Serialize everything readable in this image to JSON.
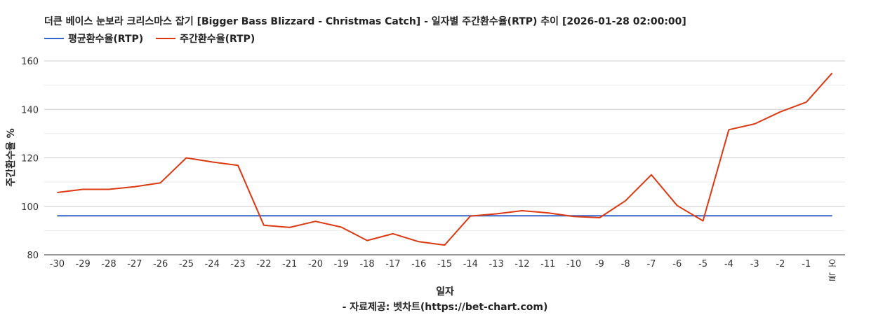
{
  "chart_data": {
    "type": "line",
    "title": "더큰 베이스 눈보라 크리스마스 잡기 [Bigger Bass Blizzard - Christmas Catch] - 일자별 주간환수율(RTP) 추이 [2026-01-28 02:00:00]",
    "xlabel": "일자",
    "ylabel": "주간환수율 %",
    "categories": [
      "-30",
      "-29",
      "-28",
      "-27",
      "-26",
      "-25",
      "-24",
      "-23",
      "-22",
      "-21",
      "-20",
      "-19",
      "-18",
      "-17",
      "-16",
      "-15",
      "-14",
      "-13",
      "-12",
      "-11",
      "-10",
      "-9",
      "-8",
      "-7",
      "-6",
      "-5",
      "-4",
      "-3",
      "-2",
      "-1",
      "오늘"
    ],
    "ylim": [
      80,
      160
    ],
    "yticks": [
      80,
      100,
      120,
      140,
      160
    ],
    "grid": true,
    "legend_position": "top-left",
    "series": [
      {
        "name": "평균환수율(RTP)",
        "color": "#3366cc",
        "values": [
          96.1,
          96.1,
          96.1,
          96.1,
          96.1,
          96.1,
          96.1,
          96.1,
          96.1,
          96.1,
          96.1,
          96.1,
          96.1,
          96.1,
          96.1,
          96.1,
          96.1,
          96.1,
          96.1,
          96.1,
          96.1,
          96.1,
          96.1,
          96.1,
          96.1,
          96.1,
          96.1,
          96.1,
          96.1,
          96.1,
          96.1
        ]
      },
      {
        "name": "주간환수율(RTP)",
        "color": "#dc3912",
        "values": [
          105.7,
          107,
          107,
          108.1,
          109.7,
          120,
          118.3,
          116.9,
          92.2,
          91.3,
          93.8,
          91.4,
          85.9,
          88.7,
          85.4,
          84,
          96,
          96.9,
          98.2,
          97.3,
          95.8,
          95.3,
          102.3,
          113,
          100.3,
          94,
          131.6,
          134,
          139,
          143,
          155
        ]
      }
    ]
  },
  "footer": "- 자료제공: 벳차트(https://bet-chart.com)"
}
